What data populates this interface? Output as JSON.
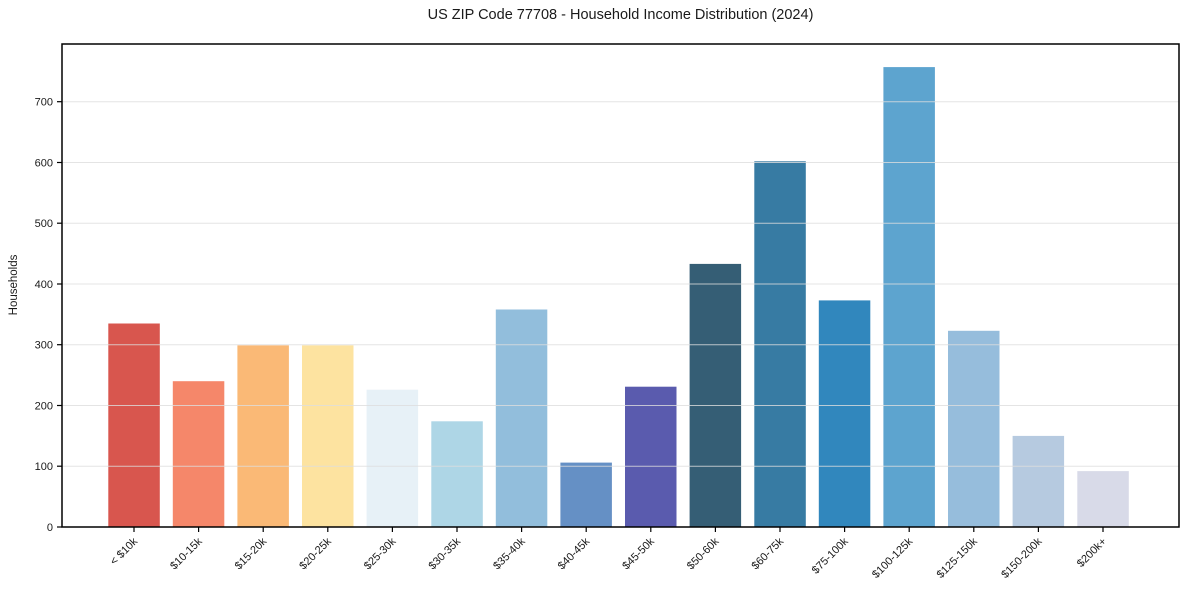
{
  "figure": {
    "title": "US ZIP Code 77708 - Household Income Distribution (2024)",
    "ylabel": "Households"
  },
  "chart_data": {
    "type": "bar",
    "title": "US ZIP Code 77708 - Household Income Distribution (2024)",
    "xlabel": "",
    "ylabel": "Households",
    "categories": [
      "< $10k",
      "$10-15k",
      "$15-20k",
      "$20-25k",
      "$25-30k",
      "$30-35k",
      "$35-40k",
      "$40-45k",
      "$45-50k",
      "$50-60k",
      "$60-75k",
      "$75-100k",
      "$100-125k",
      "$125-150k",
      "$150-200k",
      "$200k+"
    ],
    "values": [
      335,
      240,
      299,
      299,
      226,
      174,
      358,
      106,
      231,
      433,
      602,
      373,
      757,
      323,
      150,
      92
    ],
    "bar_colors": [
      "#d8564e",
      "#f5876a",
      "#fab976",
      "#fde3a0",
      "#e7f1f7",
      "#aed6e6",
      "#92bedc",
      "#6590c5",
      "#5a5bae",
      "#355e75",
      "#377ba3",
      "#3187bd",
      "#5da4cf",
      "#96bddc",
      "#b6cae0",
      "#d8dae8"
    ],
    "ylim": [
      0,
      795
    ],
    "yticks": [
      0,
      100,
      200,
      300,
      400,
      500,
      600,
      700
    ],
    "grid": "horizontal",
    "gridline_color": "#dddddd",
    "spine_color": "#000000",
    "background": "#ffffff",
    "legend": "none",
    "xtick_label_rotation_deg": 45
  }
}
